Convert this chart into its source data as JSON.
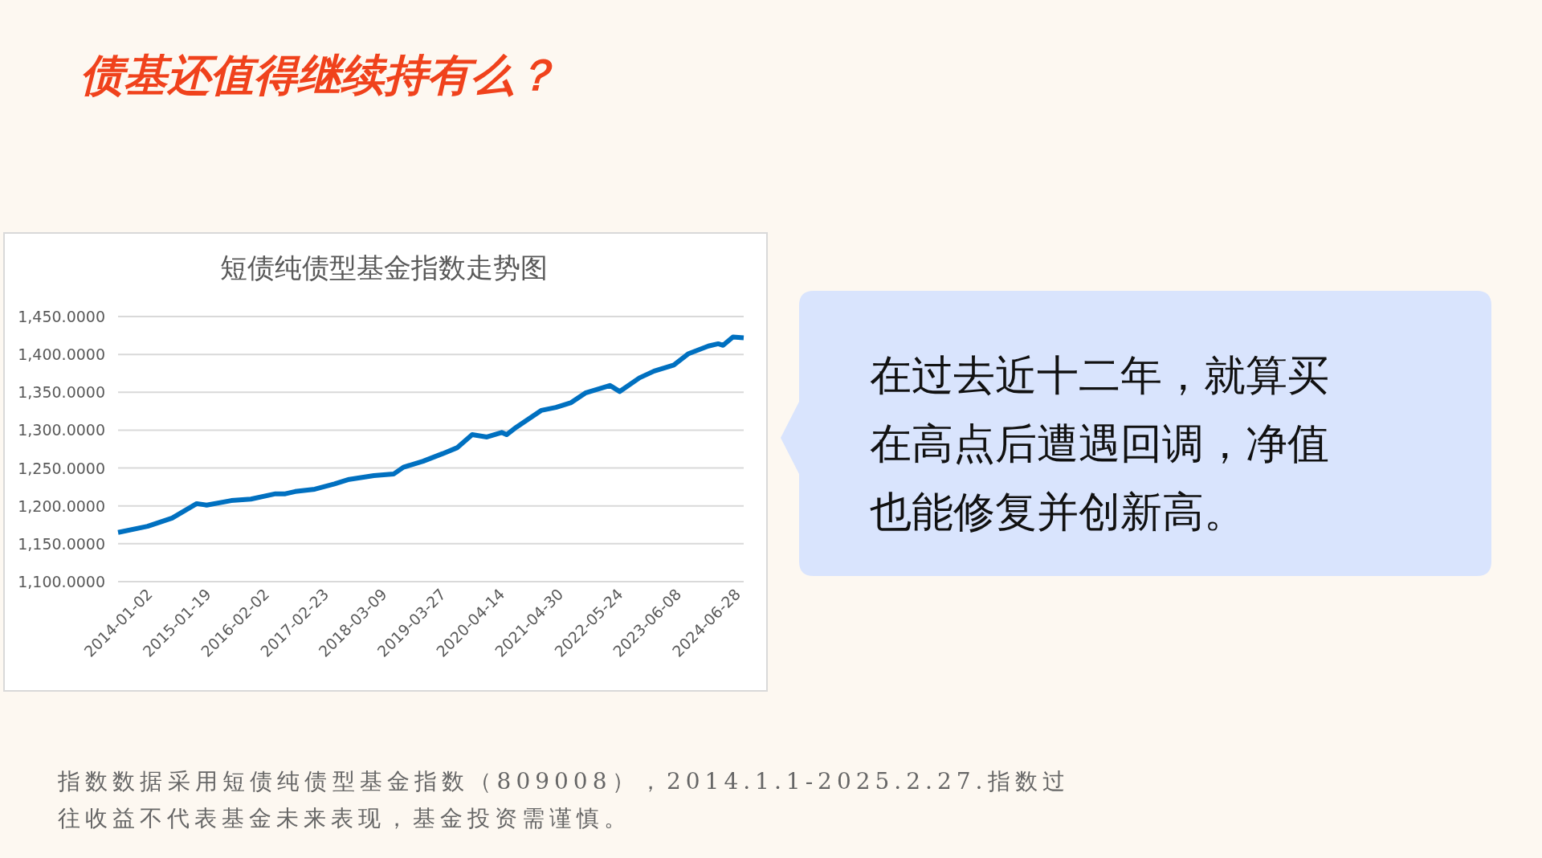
{
  "chart_data": {
    "type": "line",
    "title": "短债纯债型基金指数走势图",
    "annotations": [
      "债基还值得继续持有么？",
      "在过去近十二年，就算买在高点后遭遇回调，净值也能修复并创新高。",
      "指数数据采用短债纯债型基金指数（809008），2014.1.1-2025.2.27.指数过往收益不代表基金未来表现，基金投资需谨慎。"
    ],
    "x": [
      "2014-01-02",
      "2014-07-13",
      "2014-12-20",
      "2015-05-29",
      "2015-08-02",
      "2016-01-09",
      "2016-05-16",
      "2016-10-23",
      "2016-12-26",
      "2017-02-28",
      "2017-07-06",
      "2017-11-11",
      "2018-02-15",
      "2018-07-26",
      "2018-12-01",
      "2019-02-03",
      "2019-06-11",
      "2019-10-17",
      "2020-01-21",
      "2020-04-26",
      "2020-07-31",
      "2020-11-04",
      "2020-12-06",
      "2021-02-08",
      "2021-07-19",
      "2021-10-23",
      "2022-01-27",
      "2022-05-03",
      "2022-10-10",
      "2022-12-13",
      "2023-04-20",
      "2023-07-25",
      "2023-11-30",
      "2024-03-05",
      "2024-07-12",
      "2024-09-14",
      "2024-10-16",
      "2024-12-19",
      "2025-02-27"
    ],
    "series": [
      {
        "color": "#0070c0",
        "values": [
          1165,
          1173,
          1184,
          1203,
          1201,
          1207,
          1209,
          1216,
          1216,
          1219,
          1222,
          1229,
          1235,
          1240,
          1242,
          1251,
          1259,
          1269,
          1277,
          1294,
          1291,
          1297,
          1294,
          1304,
          1326,
          1330,
          1336,
          1349,
          1359,
          1351,
          1369,
          1378,
          1386,
          1401,
          1411,
          1414,
          1412,
          1423,
          1422
        ]
      }
    ],
    "xlim": [
      "2014-01-02",
      "2025-02-27"
    ],
    "xticks": [
      "2014-01-02",
      "2015-01-19",
      "2016-02-02",
      "2017-02-23",
      "2018-03-09",
      "2019-03-27",
      "2020-04-14",
      "2021-04-30",
      "2022-05-24",
      "2023-06-08",
      "2024-06-28"
    ],
    "ylim": [
      1100,
      1450
    ],
    "yticks": [
      {
        "value": 1100,
        "label": "1,100.0000"
      },
      {
        "value": 1150,
        "label": "1,150.0000"
      },
      {
        "value": 1200,
        "label": "1,200.0000"
      },
      {
        "value": 1250,
        "label": "1,250.0000"
      },
      {
        "value": 1300,
        "label": "1,300.0000"
      },
      {
        "value": 1350,
        "label": "1,350.0000"
      },
      {
        "value": 1400,
        "label": "1,400.0000"
      },
      {
        "value": 1450,
        "label": "1,450.0000"
      }
    ],
    "grid": "y",
    "marker": "none",
    "line_style": "solid"
  }
}
